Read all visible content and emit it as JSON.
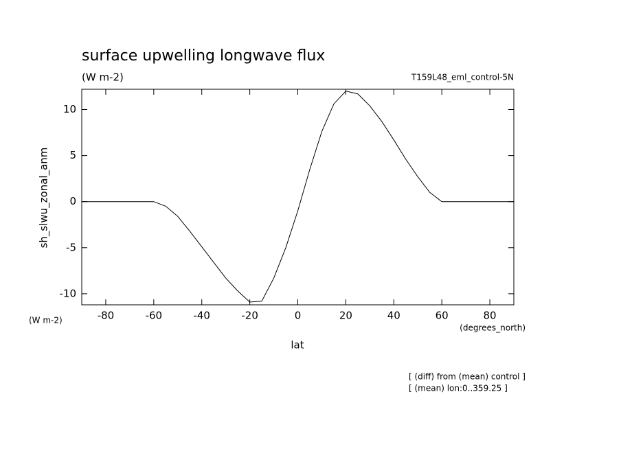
{
  "chart_data": {
    "type": "line",
    "title": "surface upwelling longwave flux",
    "subtitle": "(W m-2)",
    "dataset": "T159L48_eml_control-5N",
    "y_label": "sh_slwu_zonal_anm",
    "y_units": "(W m-2)",
    "x_label": "lat",
    "x_units": "(degrees_north)",
    "notes": [
      "[ (diff) from (mean) control ]",
      "[ (mean) lon:0..359.25 ]"
    ],
    "x": [
      -90,
      -85,
      -80,
      -75,
      -70,
      -65,
      -60,
      -55,
      -50,
      -45,
      -40,
      -35,
      -30,
      -25,
      -20,
      -15,
      -10,
      -5,
      0,
      5,
      10,
      15,
      20,
      25,
      30,
      35,
      40,
      45,
      50,
      55,
      60,
      65,
      70,
      75,
      80,
      85,
      90
    ],
    "series": [
      {
        "name": "sh_slwu_zonal_anm",
        "color": "#000000",
        "values": [
          0,
          0,
          0,
          0,
          0,
          0,
          0,
          -0.5,
          -1.6,
          -3.2,
          -4.9,
          -6.6,
          -8.3,
          -9.7,
          -10.9,
          -10.8,
          -8.3,
          -5.0,
          -1.0,
          3.5,
          7.6,
          10.6,
          12.0,
          11.7,
          10.4,
          8.7,
          6.7,
          4.6,
          2.7,
          1.0,
          0,
          0,
          0,
          0,
          0,
          0,
          0
        ]
      }
    ],
    "xlim": [
      -90,
      90
    ],
    "xticks": [
      -80,
      -60,
      -40,
      -20,
      0,
      20,
      40,
      60,
      80
    ],
    "ylim": [
      -11.2,
      12.2
    ],
    "yticks": [
      -10,
      -5,
      0,
      5,
      10
    ]
  }
}
